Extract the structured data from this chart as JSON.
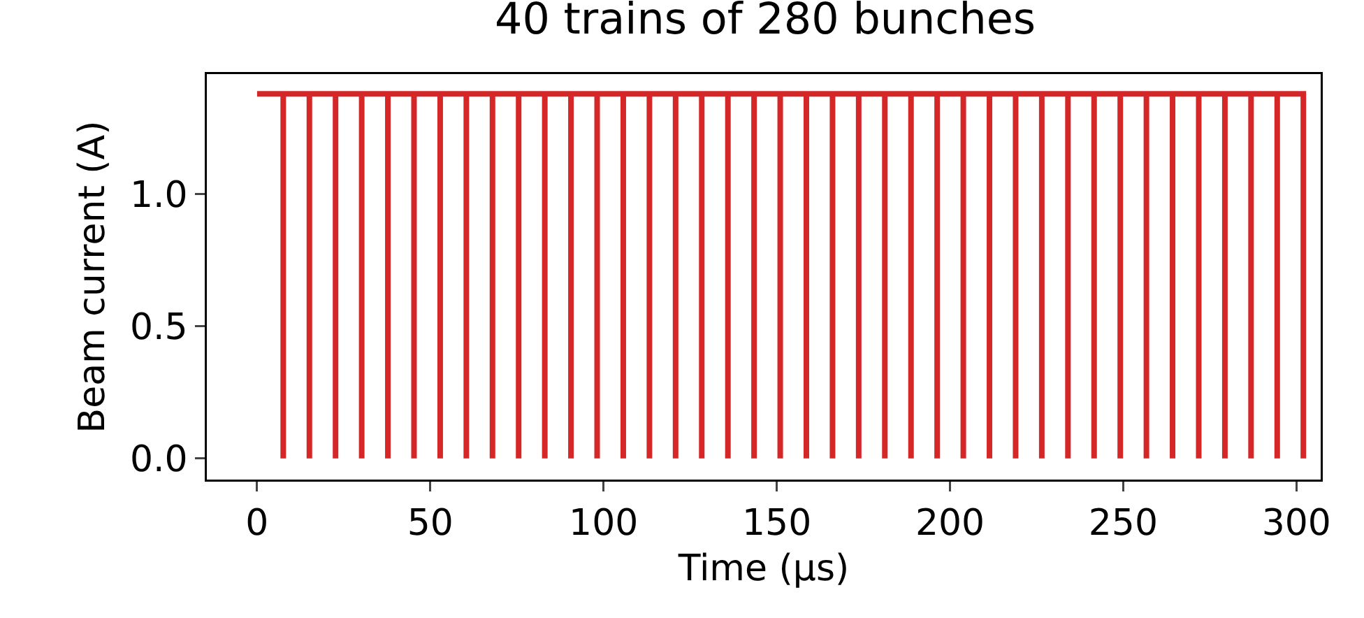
{
  "chart_data": {
    "type": "line",
    "title": "40 trains of 280 bunches",
    "xlabel": "Time (μs)",
    "ylabel": "Beam current (A)",
    "x": [
      0,
      7.55,
      7.55,
      7.55,
      15.1,
      15.1,
      15.1,
      22.65,
      22.65,
      22.65,
      30.2,
      30.2,
      30.2,
      37.75,
      37.75,
      37.75,
      45.3,
      45.3,
      45.3,
      52.85,
      52.85,
      52.85,
      60.4,
      60.4,
      60.4,
      67.95,
      67.95,
      67.95,
      75.5,
      75.5,
      75.5,
      83.05,
      83.05,
      83.05,
      90.6,
      90.6,
      90.6,
      98.15,
      98.15,
      98.15,
      105.7,
      105.7,
      105.7,
      113.25,
      113.25,
      113.25,
      120.8,
      120.8,
      120.8,
      128.35,
      128.35,
      128.35,
      135.9,
      135.9,
      135.9,
      143.45,
      143.45,
      143.45,
      151,
      151,
      151,
      158.55,
      158.55,
      158.55,
      166.1,
      166.1,
      166.1,
      173.65,
      173.65,
      173.65,
      181.2,
      181.2,
      181.2,
      188.75,
      188.75,
      188.75,
      196.3,
      196.3,
      196.3,
      203.85,
      203.85,
      203.85,
      211.4,
      211.4,
      211.4,
      218.95,
      218.95,
      218.95,
      226.5,
      226.5,
      226.5,
      234.05,
      234.05,
      234.05,
      241.6,
      241.6,
      241.6,
      249.15,
      249.15,
      249.15,
      256.7,
      256.7,
      256.7,
      264.25,
      264.25,
      264.25,
      271.8,
      271.8,
      271.8,
      279.35,
      279.35,
      279.35,
      286.9,
      286.9,
      286.9,
      294.45,
      294.45,
      294.45,
      302,
      302
    ],
    "series": [
      {
        "color": "#d62728",
        "values": [
          1.38,
          1.38,
          0,
          1.38,
          1.38,
          0,
          1.38,
          1.38,
          0,
          1.38,
          1.38,
          0,
          1.38,
          1.38,
          0,
          1.38,
          1.38,
          0,
          1.38,
          1.38,
          0,
          1.38,
          1.38,
          0,
          1.38,
          1.38,
          0,
          1.38,
          1.38,
          0,
          1.38,
          1.38,
          0,
          1.38,
          1.38,
          0,
          1.38,
          1.38,
          0,
          1.38,
          1.38,
          0,
          1.38,
          1.38,
          0,
          1.38,
          1.38,
          0,
          1.38,
          1.38,
          0,
          1.38,
          1.38,
          0,
          1.38,
          1.38,
          0,
          1.38,
          1.38,
          0,
          1.38,
          1.38,
          0,
          1.38,
          1.38,
          0,
          1.38,
          1.38,
          0,
          1.38,
          1.38,
          0,
          1.38,
          1.38,
          0,
          1.38,
          1.38,
          0,
          1.38,
          1.38,
          0,
          1.38,
          1.38,
          0,
          1.38,
          1.38,
          0,
          1.38,
          1.38,
          0,
          1.38,
          1.38,
          0,
          1.38,
          1.38,
          0,
          1.38,
          1.38,
          0,
          1.38,
          1.38,
          0,
          1.38,
          1.38,
          0,
          1.38,
          1.38,
          0,
          1.38,
          1.38,
          0,
          1.38,
          1.38,
          0,
          1.38,
          1.38,
          0,
          1.38,
          1.38,
          0
        ]
      }
    ],
    "xlim": [
      -14.5,
      307
    ],
    "xticks": [
      0,
      50,
      100,
      150,
      200,
      250,
      300
    ],
    "ylim": [
      -0.08,
      1.455
    ],
    "yticks": [
      {
        "value": 0,
        "label": "0.0"
      },
      {
        "value": 0.5,
        "label": "0.5"
      },
      {
        "value": 1,
        "label": "1.0"
      }
    ],
    "grid": false
  }
}
